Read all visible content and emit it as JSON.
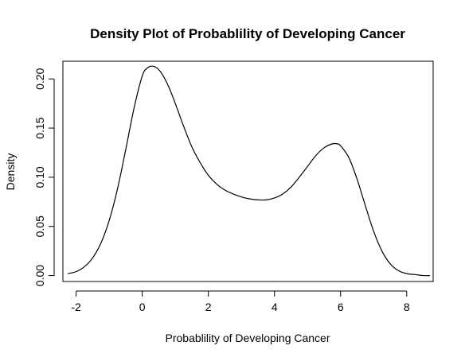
{
  "chart_data": {
    "type": "line",
    "title": "Density Plot of Probablility of Developing Cancer",
    "xlabel": "Probablility of Developing Cancer",
    "ylabel": "Density",
    "xlim": [
      -2.4,
      8.8
    ],
    "ylim": [
      -0.006,
      0.218
    ],
    "x_ticks": [
      -2,
      0,
      2,
      4,
      6,
      8
    ],
    "y_ticks": [
      0.0,
      0.05,
      0.1,
      0.15,
      0.2
    ],
    "x_tick_labels": [
      "-2",
      "0",
      "2",
      "4",
      "6",
      "8"
    ],
    "y_tick_labels": [
      "0.00",
      "0.05",
      "0.10",
      "0.15",
      "0.20"
    ],
    "grid": false,
    "legend": "none",
    "line_color": "#000000",
    "series": [
      {
        "x": [
          -2.25,
          -2.0,
          -1.75,
          -1.5,
          -1.25,
          -1.0,
          -0.75,
          -0.5,
          -0.25,
          0.0,
          0.15,
          0.3,
          0.45,
          0.6,
          0.8,
          1.0,
          1.25,
          1.5,
          1.75,
          2.0,
          2.25,
          2.5,
          2.75,
          3.0,
          3.25,
          3.5,
          3.75,
          4.0,
          4.25,
          4.5,
          4.75,
          5.0,
          5.25,
          5.5,
          5.75,
          5.9,
          6.0,
          6.25,
          6.5,
          6.75,
          7.0,
          7.25,
          7.5,
          7.75,
          8.0,
          8.25,
          8.5,
          8.7
        ],
        "y": [
          0.002,
          0.004,
          0.009,
          0.018,
          0.033,
          0.056,
          0.088,
          0.128,
          0.17,
          0.203,
          0.211,
          0.213,
          0.211,
          0.205,
          0.192,
          0.175,
          0.152,
          0.131,
          0.115,
          0.102,
          0.093,
          0.087,
          0.083,
          0.08,
          0.078,
          0.077,
          0.077,
          0.079,
          0.083,
          0.09,
          0.1,
          0.111,
          0.122,
          0.13,
          0.134,
          0.134,
          0.132,
          0.12,
          0.098,
          0.071,
          0.045,
          0.025,
          0.012,
          0.005,
          0.002,
          0.001,
          0.0,
          0.0
        ]
      }
    ]
  }
}
